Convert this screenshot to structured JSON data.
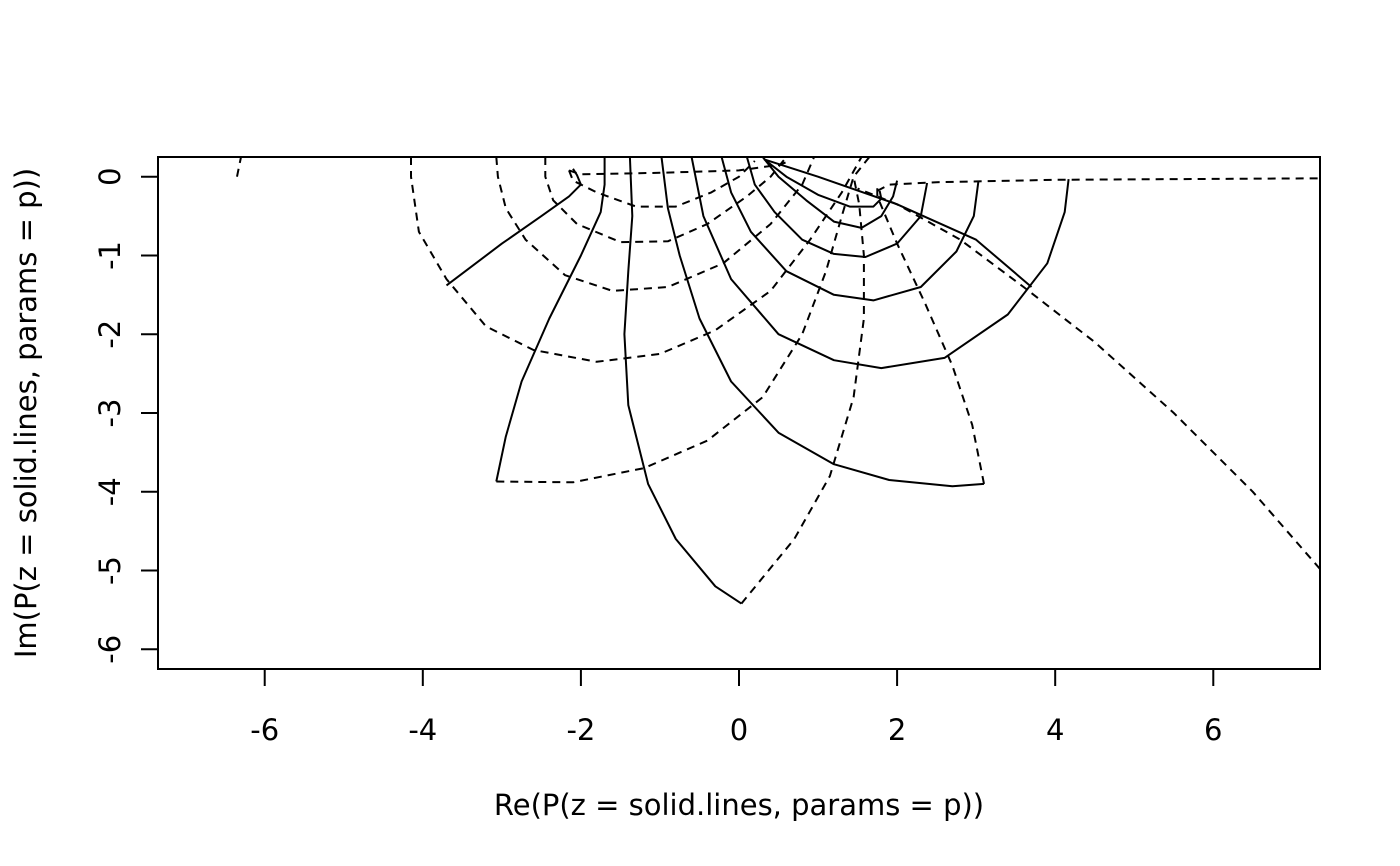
{
  "chart_data": {
    "type": "line",
    "title": "",
    "xlabel": "Re(P(z = solid.lines, params = p))",
    "ylabel": "Im(P(z = solid.lines, params = p))",
    "xlim": [
      -7.35,
      7.35
    ],
    "ylim": [
      -6.25,
      0.25
    ],
    "x_ticks": [
      -6,
      -4,
      -2,
      0,
      2,
      4,
      6
    ],
    "y_ticks": [
      0,
      -1,
      -2,
      -3,
      -4,
      -5,
      -6
    ],
    "x_tick_labels": [
      "-6",
      "-4",
      "-2",
      "0",
      "2",
      "4",
      "6"
    ],
    "y_tick_labels": [
      "0",
      "-1",
      "-2",
      "-3",
      "-4",
      "-5",
      "-6"
    ],
    "line_color": "#000000",
    "solid_lines": [
      [
        [
          -3.7,
          -1.38
        ],
        [
          -3.0,
          -0.85
        ],
        [
          -2.5,
          -0.5
        ],
        [
          -2.15,
          -0.25
        ],
        [
          -2.0,
          -0.1
        ],
        [
          -2.05,
          0.02
        ],
        [
          -2.1,
          0.1
        ]
      ],
      [
        [
          -3.07,
          -3.87
        ],
        [
          -2.95,
          -3.3
        ],
        [
          -2.75,
          -2.6
        ],
        [
          -2.4,
          -1.8
        ],
        [
          -2.0,
          -1.0
        ],
        [
          -1.75,
          -0.45
        ],
        [
          -1.7,
          -0.1
        ],
        [
          -1.7,
          0.25
        ]
      ],
      [
        [
          0.03,
          -5.42
        ],
        [
          -0.3,
          -5.2
        ],
        [
          -0.8,
          -4.6
        ],
        [
          -1.15,
          -3.9
        ],
        [
          -1.4,
          -2.9
        ],
        [
          -1.45,
          -2.0
        ],
        [
          -1.4,
          -1.2
        ],
        [
          -1.35,
          -0.5
        ],
        [
          -1.38,
          0.25
        ]
      ],
      [
        [
          3.1,
          -3.9
        ],
        [
          2.7,
          -3.93
        ],
        [
          1.9,
          -3.85
        ],
        [
          1.2,
          -3.65
        ],
        [
          0.5,
          -3.25
        ],
        [
          -0.1,
          -2.6
        ],
        [
          -0.5,
          -1.8
        ],
        [
          -0.75,
          -1.0
        ],
        [
          -0.9,
          -0.4
        ],
        [
          -0.98,
          0.25
        ]
      ],
      [
        [
          -0.6,
          0.25
        ],
        [
          -0.45,
          -0.5
        ],
        [
          -0.1,
          -1.3
        ],
        [
          0.5,
          -2.0
        ],
        [
          1.2,
          -2.33
        ],
        [
          1.8,
          -2.43
        ],
        [
          2.6,
          -2.3
        ],
        [
          3.4,
          -1.75
        ],
        [
          3.9,
          -1.1
        ],
        [
          4.12,
          -0.45
        ],
        [
          4.17,
          -0.03
        ]
      ],
      [
        [
          -0.22,
          0.25
        ],
        [
          -0.1,
          -0.2
        ],
        [
          0.15,
          -0.7
        ],
        [
          0.6,
          -1.2
        ],
        [
          1.2,
          -1.5
        ],
        [
          1.7,
          -1.57
        ],
        [
          2.3,
          -1.4
        ],
        [
          2.75,
          -0.95
        ],
        [
          2.97,
          -0.5
        ],
        [
          3.03,
          -0.05
        ]
      ],
      [
        [
          0.1,
          0.25
        ],
        [
          0.2,
          -0.1
        ],
        [
          0.45,
          -0.45
        ],
        [
          0.8,
          -0.8
        ],
        [
          1.2,
          -0.98
        ],
        [
          1.6,
          -1.02
        ],
        [
          2.0,
          -0.85
        ],
        [
          2.3,
          -0.5
        ],
        [
          2.38,
          -0.08
        ]
      ],
      [
        [
          0.3,
          0.25
        ],
        [
          0.5,
          0.0
        ],
        [
          0.85,
          -0.3
        ],
        [
          1.2,
          -0.57
        ],
        [
          1.55,
          -0.65
        ],
        [
          1.8,
          -0.5
        ],
        [
          1.95,
          -0.25
        ],
        [
          2.0,
          -0.05
        ]
      ],
      [
        [
          0.32,
          0.22
        ],
        [
          0.6,
          0.0
        ],
        [
          1.0,
          -0.23
        ],
        [
          1.4,
          -0.38
        ],
        [
          1.7,
          -0.38
        ],
        [
          1.8,
          -0.28
        ],
        [
          1.78,
          -0.18
        ]
      ],
      [
        [
          0.32,
          0.22
        ],
        [
          1.0,
          0.0
        ],
        [
          2.0,
          -0.35
        ],
        [
          3.0,
          -0.8
        ],
        [
          3.7,
          -1.4
        ]
      ]
    ],
    "dashed_lines": [
      [
        [
          -6.35,
          0.0
        ],
        [
          -6.3,
          0.25
        ]
      ],
      [
        [
          -4.15,
          0.25
        ],
        [
          -4.15,
          0.0
        ],
        [
          -4.05,
          -0.7
        ],
        [
          -3.7,
          -1.3
        ],
        [
          -3.2,
          -1.9
        ],
        [
          -2.6,
          -2.2
        ],
        [
          -1.8,
          -2.35
        ],
        [
          -1.0,
          -2.25
        ],
        [
          -0.3,
          -1.95
        ],
        [
          0.4,
          -1.45
        ],
        [
          0.9,
          -0.8
        ],
        [
          1.3,
          -0.2
        ],
        [
          1.55,
          0.25
        ]
      ],
      [
        [
          -3.07,
          -3.87
        ],
        [
          -2.1,
          -3.88
        ],
        [
          -1.2,
          -3.7
        ],
        [
          -0.4,
          -3.35
        ],
        [
          0.3,
          -2.8
        ],
        [
          0.8,
          -2.0
        ],
        [
          1.1,
          -1.2
        ],
        [
          1.3,
          -0.5
        ],
        [
          1.45,
          0.0
        ],
        [
          1.65,
          0.25
        ]
      ],
      [
        [
          0.03,
          -5.42
        ],
        [
          0.7,
          -4.6
        ],
        [
          1.15,
          -3.8
        ],
        [
          1.45,
          -2.8
        ],
        [
          1.58,
          -1.8
        ],
        [
          1.58,
          -1.0
        ],
        [
          1.52,
          -0.35
        ],
        [
          1.45,
          0.0
        ]
      ],
      [
        [
          3.1,
          -3.9
        ],
        [
          2.95,
          -3.15
        ],
        [
          2.7,
          -2.4
        ],
        [
          2.35,
          -1.6
        ],
        [
          2.0,
          -0.85
        ],
        [
          1.75,
          -0.25
        ],
        [
          1.75,
          -0.1
        ]
      ],
      [
        [
          1.75,
          -0.18
        ],
        [
          1.9,
          -0.1
        ],
        [
          2.5,
          -0.07
        ],
        [
          4.0,
          -0.04
        ],
        [
          7.35,
          -0.02
        ]
      ],
      [
        [
          7.35,
          -4.98
        ],
        [
          6.5,
          -4.0
        ],
        [
          5.5,
          -3.0
        ],
        [
          4.5,
          -2.1
        ],
        [
          3.6,
          -1.4
        ],
        [
          2.8,
          -0.8
        ],
        [
          2.0,
          -0.35
        ],
        [
          1.5,
          -0.15
        ]
      ],
      [
        [
          -3.07,
          0.25
        ],
        [
          -3.05,
          0.0
        ],
        [
          -2.95,
          -0.4
        ],
        [
          -2.7,
          -0.8
        ],
        [
          -2.2,
          -1.25
        ],
        [
          -1.6,
          -1.45
        ],
        [
          -0.9,
          -1.4
        ],
        [
          -0.2,
          -1.1
        ],
        [
          0.4,
          -0.6
        ],
        [
          0.8,
          -0.1
        ],
        [
          0.95,
          0.25
        ]
      ],
      [
        [
          -2.45,
          0.25
        ],
        [
          -2.45,
          0.0
        ],
        [
          -2.35,
          -0.3
        ],
        [
          -2.05,
          -0.6
        ],
        [
          -1.5,
          -0.83
        ],
        [
          -0.9,
          -0.82
        ],
        [
          -0.4,
          -0.6
        ],
        [
          0.1,
          -0.25
        ],
        [
          0.4,
          0.0
        ],
        [
          0.6,
          0.25
        ]
      ],
      [
        [
          -2.15,
          0.08
        ],
        [
          -2.1,
          -0.05
        ],
        [
          -1.8,
          -0.2
        ],
        [
          -1.3,
          -0.38
        ],
        [
          -0.8,
          -0.38
        ],
        [
          -0.35,
          -0.2
        ],
        [
          0.0,
          0.0
        ],
        [
          0.2,
          0.2
        ]
      ],
      [
        [
          -2.15,
          0.08
        ],
        [
          -2.0,
          0.03
        ],
        [
          -1.0,
          0.05
        ],
        [
          0.0,
          0.08
        ],
        [
          0.5,
          0.15
        ],
        [
          0.65,
          0.2
        ]
      ]
    ]
  }
}
